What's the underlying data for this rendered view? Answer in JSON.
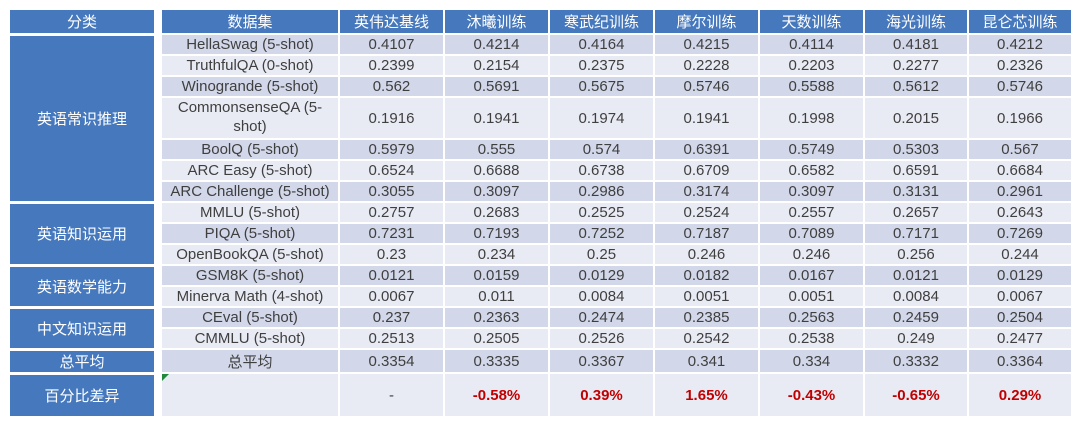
{
  "colors": {
    "header_blue": "#4678BD",
    "band_dark": "#D2D7E9",
    "band_light": "#E9EBF4",
    "delta_red": "#C00000",
    "flag_green": "#1F8A3B",
    "body_text": "#3F3F3F"
  },
  "chart_data": {
    "type": "table",
    "columns": [
      "分类",
      "数据集",
      "英伟达基线",
      "沐曦训练",
      "寒武纪训练",
      "摩尔训练",
      "天数训练",
      "海光训练",
      "昆仑芯训练"
    ],
    "groups": [
      {
        "category": "英语常识推理",
        "rows": [
          {
            "dataset": "HellaSwag (5-shot)",
            "values": [
              "0.4107",
              "0.4214",
              "0.4164",
              "0.4215",
              "0.4114",
              "0.4181",
              "0.4212"
            ]
          },
          {
            "dataset": "TruthfulQA (0-shot)",
            "values": [
              "0.2399",
              "0.2154",
              "0.2375",
              "0.2228",
              "0.2203",
              "0.2277",
              "0.2326"
            ]
          },
          {
            "dataset": "Winogrande (5-shot)",
            "values": [
              "0.562",
              "0.5691",
              "0.5675",
              "0.5746",
              "0.5588",
              "0.5612",
              "0.5746"
            ]
          },
          {
            "dataset": "CommonsenseQA (5-shot)",
            "two_line": true,
            "values": [
              "0.1916",
              "0.1941",
              "0.1974",
              "0.1941",
              "0.1998",
              "0.2015",
              "0.1966"
            ]
          },
          {
            "dataset": "BoolQ (5-shot)",
            "values": [
              "0.5979",
              "0.555",
              "0.574",
              "0.6391",
              "0.5749",
              "0.5303",
              "0.567"
            ]
          },
          {
            "dataset": "ARC Easy (5-shot)",
            "values": [
              "0.6524",
              "0.6688",
              "0.6738",
              "0.6709",
              "0.6582",
              "0.6591",
              "0.6684"
            ]
          },
          {
            "dataset": "ARC Challenge (5-shot)",
            "values": [
              "0.3055",
              "0.3097",
              "0.2986",
              "0.3174",
              "0.3097",
              "0.3131",
              "0.2961"
            ]
          }
        ]
      },
      {
        "category": "英语知识运用",
        "rows": [
          {
            "dataset": "MMLU (5-shot)",
            "values": [
              "0.2757",
              "0.2683",
              "0.2525",
              "0.2524",
              "0.2557",
              "0.2657",
              "0.2643"
            ]
          },
          {
            "dataset": "PIQA (5-shot)",
            "values": [
              "0.7231",
              "0.7193",
              "0.7252",
              "0.7187",
              "0.7089",
              "0.7171",
              "0.7269"
            ]
          },
          {
            "dataset": "OpenBookQA (5-shot)",
            "values": [
              "0.23",
              "0.234",
              "0.25",
              "0.246",
              "0.246",
              "0.256",
              "0.244"
            ]
          }
        ]
      },
      {
        "category": "英语数学能力",
        "rows": [
          {
            "dataset": "GSM8K (5-shot)",
            "values": [
              "0.0121",
              "0.0159",
              "0.0129",
              "0.0182",
              "0.0167",
              "0.0121",
              "0.0129"
            ]
          },
          {
            "dataset": "Minerva Math (4-shot)",
            "values": [
              "0.0067",
              "0.011",
              "0.0084",
              "0.0051",
              "0.0051",
              "0.0084",
              "0.0067"
            ]
          }
        ]
      },
      {
        "category": "中文知识运用",
        "rows": [
          {
            "dataset": "CEval (5-shot)",
            "values": [
              "0.237",
              "0.2363",
              "0.2474",
              "0.2385",
              "0.2563",
              "0.2459",
              "0.2504"
            ]
          },
          {
            "dataset": "CMMLU (5-shot)",
            "values": [
              "0.2513",
              "0.2505",
              "0.2526",
              "0.2542",
              "0.2538",
              "0.249",
              "0.2477"
            ]
          }
        ]
      },
      {
        "category": "总平均",
        "rows": [
          {
            "dataset": "总平均",
            "values": [
              "0.3354",
              "0.3335",
              "0.3367",
              "0.341",
              "0.334",
              "0.3332",
              "0.3364"
            ]
          }
        ]
      },
      {
        "category": "百分比差异",
        "rows": [
          {
            "dataset": "",
            "tall": true,
            "delta": true,
            "corner_flag": "green-triangle",
            "values": [
              "-",
              "-0.58%",
              "0.39%",
              "1.65%",
              "-0.43%",
              "-0.65%",
              "0.29%"
            ]
          }
        ]
      }
    ]
  }
}
